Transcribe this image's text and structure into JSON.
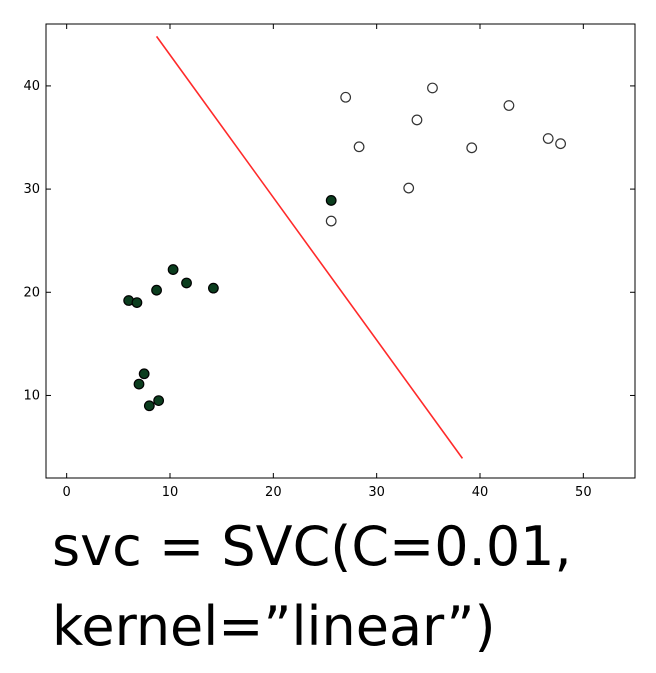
{
  "caption": {
    "line1": "svc = SVC(C=0.01,",
    "line2": "kernel=”linear”)"
  },
  "chart_data": {
    "type": "scatter",
    "xlim": [
      -2,
      55
    ],
    "ylim": [
      2,
      46
    ],
    "x_ticks": [
      0,
      10,
      20,
      30,
      40,
      50
    ],
    "y_ticks": [
      10,
      20,
      30,
      40
    ],
    "grid": false,
    "colors": {
      "filled": "#0b3d1e",
      "hollow_fill": "#ffffff",
      "hollow_stroke": "#333333",
      "boundary": "#ff2a2a"
    },
    "series": [
      {
        "marker": "filled",
        "points": [
          [
            6.0,
            19.2
          ],
          [
            6.8,
            19.0
          ],
          [
            8.7,
            20.2
          ],
          [
            10.3,
            22.2
          ],
          [
            11.6,
            20.9
          ],
          [
            14.2,
            20.4
          ],
          [
            7.5,
            12.1
          ],
          [
            7.0,
            11.1
          ],
          [
            8.0,
            9.0
          ],
          [
            8.9,
            9.5
          ],
          [
            25.6,
            28.9
          ]
        ]
      },
      {
        "marker": "hollow",
        "points": [
          [
            25.6,
            26.9
          ],
          [
            27.0,
            38.9
          ],
          [
            28.3,
            34.1
          ],
          [
            33.1,
            30.1
          ],
          [
            33.9,
            36.7
          ],
          [
            35.4,
            39.8
          ],
          [
            39.2,
            34.0
          ],
          [
            42.8,
            38.1
          ],
          [
            46.6,
            34.9
          ],
          [
            47.8,
            34.4
          ]
        ]
      }
    ],
    "boundary_line": {
      "x": [
        8.7,
        38.3
      ],
      "y": [
        44.8,
        3.9
      ]
    }
  }
}
